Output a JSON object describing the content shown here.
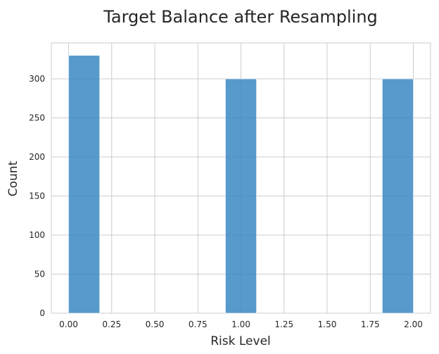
{
  "chart_data": {
    "type": "bar",
    "title": "Target Balance after Resampling",
    "xlabel": "Risk Level",
    "ylabel": "Count",
    "bins": [
      {
        "x0": 0.0,
        "x1": 0.18,
        "count": 330
      },
      {
        "x0": 0.91,
        "x1": 1.09,
        "count": 300
      },
      {
        "x0": 1.82,
        "x1": 2.0,
        "count": 300
      }
    ],
    "xlim": [
      -0.1,
      2.1
    ],
    "ylim": [
      0,
      346
    ],
    "xticks": [
      "0.00",
      "0.25",
      "0.50",
      "0.75",
      "1.00",
      "1.25",
      "1.50",
      "1.75",
      "2.00"
    ],
    "yticks": [
      "0",
      "50",
      "100",
      "150",
      "200",
      "250",
      "300"
    ],
    "grid": true,
    "bar_color": "#3a88c2"
  }
}
